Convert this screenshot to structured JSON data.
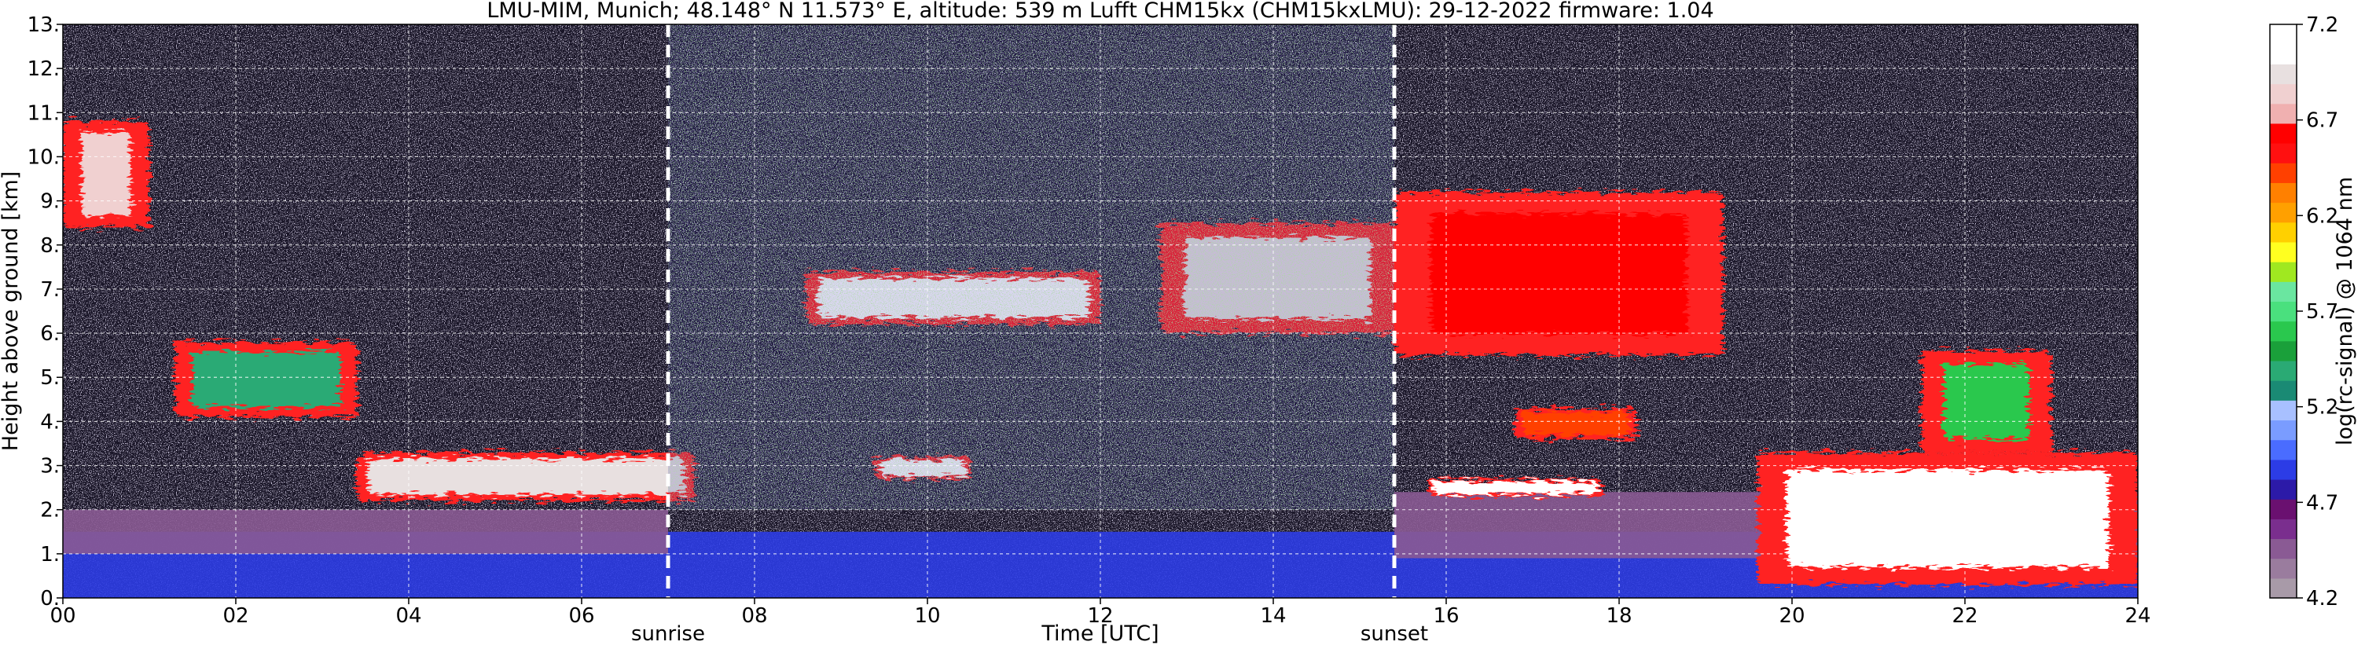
{
  "chart_data": {
    "type": "heatmap",
    "title": "LMU-MIM, Munich; 48.148° N 11.573° E, altitude: 539 m    Lufft CHM15kx (CHM15kxLMU): 29-12-2022    firmware: 1.04",
    "xlabel": "Time [UTC]",
    "ylabel": "Height above ground [km]",
    "xlim": [
      0,
      24
    ],
    "ylim": [
      0,
      13
    ],
    "x_ticks": [
      "00",
      "02",
      "04",
      "06",
      "08",
      "10",
      "12",
      "14",
      "16",
      "18",
      "20",
      "22",
      "24"
    ],
    "y_ticks": [
      "0.",
      "1.",
      "2.",
      "3.",
      "4.",
      "5.",
      "6.",
      "7.",
      "8.",
      "9.",
      "10.",
      "11.",
      "12.",
      "13."
    ],
    "grid": true,
    "events": [
      {
        "label": "sunrise",
        "x": 7.0
      },
      {
        "label": "sunset",
        "x": 15.4
      }
    ],
    "colorbar": {
      "label": "log(rc-signal) @ 1064 nm",
      "range": [
        4.2,
        7.2
      ],
      "ticks": [
        "4.2",
        "4.7",
        "5.2",
        "5.7",
        "6.2",
        "6.7",
        "7.2"
      ],
      "colors": [
        "#a89aa8",
        "#9a7c9e",
        "#8a5a94",
        "#7a2e8e",
        "#6a1070",
        "#2c1aa8",
        "#2c3ce6",
        "#4a6cff",
        "#7a9cff",
        "#a8c0ff",
        "#1a8a74",
        "#2aaa74",
        "#1aa03a",
        "#2ac84e",
        "#4ae07e",
        "#6ae6a0",
        "#a0e820",
        "#ffff20",
        "#ffd000",
        "#ffa000",
        "#ff8000",
        "#ff4000",
        "#ff1010",
        "#ff0000",
        "#f0b0b0",
        "#f0d0d0",
        "#e8e0e0",
        "#ffffff",
        "#ffffff"
      ]
    },
    "layers": [
      {
        "name": "surface layer",
        "x": [
          0,
          24
        ],
        "y": [
          0,
          1.5
        ],
        "value": 4.9
      },
      {
        "name": "aerosol layer",
        "x": [
          0,
          7.0
        ],
        "y": [
          1.0,
          2.0
        ],
        "value": 4.5
      },
      {
        "name": "aerosol layer",
        "x": [
          15.4,
          24
        ],
        "y": [
          0.9,
          2.4
        ],
        "value": 4.5
      },
      {
        "name": "cloud",
        "x": [
          0,
          1.0
        ],
        "y": [
          8.4,
          10.8
        ],
        "value": 6.8
      },
      {
        "name": "cloud",
        "x": [
          1.3,
          3.4
        ],
        "y": [
          4.1,
          5.8
        ],
        "value": 5.4
      },
      {
        "name": "cloud",
        "x": [
          3.4,
          7.3
        ],
        "y": [
          2.2,
          3.3
        ],
        "value": 6.9
      },
      {
        "name": "cloud",
        "x": [
          8.6,
          12.0
        ],
        "y": [
          6.2,
          7.4
        ],
        "value": 7.0
      },
      {
        "name": "cloud",
        "x": [
          12.7,
          15.4
        ],
        "y": [
          6.0,
          8.5
        ],
        "value": 6.9
      },
      {
        "name": "cloud",
        "x": [
          15.4,
          19.2
        ],
        "y": [
          5.5,
          9.2
        ],
        "value": 6.6
      },
      {
        "name": "cloud",
        "x": [
          19.6,
          24
        ],
        "y": [
          0.3,
          3.3
        ],
        "value": 7.0
      },
      {
        "name": "cloud",
        "x": [
          21.5,
          23.0
        ],
        "y": [
          3.3,
          5.6
        ],
        "value": 5.6
      },
      {
        "name": "cloud",
        "x": [
          9.4,
          10.5
        ],
        "y": [
          2.7,
          3.2
        ],
        "value": 7.0
      },
      {
        "name": "cloud",
        "x": [
          15.8,
          17.8
        ],
        "y": [
          2.3,
          2.7
        ],
        "value": 7.0
      },
      {
        "name": "cloud",
        "x": [
          16.8,
          18.2
        ],
        "y": [
          3.6,
          4.3
        ],
        "value": 6.4
      },
      {
        "name": "noise",
        "x": [
          7.0,
          15.4
        ],
        "y": [
          2.0,
          13.0
        ],
        "value": 4.8
      }
    ]
  }
}
